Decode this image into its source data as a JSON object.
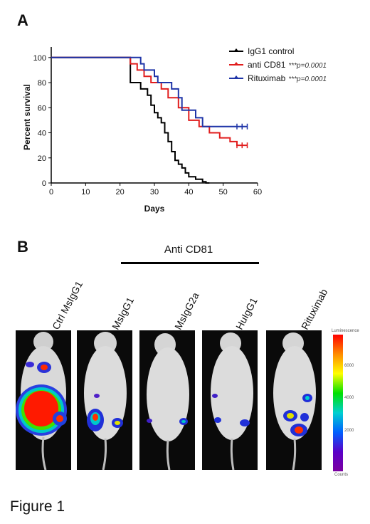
{
  "panel_a_label": "A",
  "panel_b_label": "B",
  "figure_caption": "Figure 1",
  "chart_data": {
    "type": "line",
    "step": true,
    "xlabel": "Days",
    "ylabel": "Percent survival",
    "xlim": [
      0,
      60
    ],
    "ylim": [
      0,
      105
    ],
    "xticks": [
      0,
      10,
      20,
      30,
      40,
      50,
      60
    ],
    "yticks": [
      0,
      20,
      40,
      60,
      80,
      100
    ],
    "legend_position": "top-right",
    "series": [
      {
        "name": "IgG1 control",
        "stat": "",
        "color": "#000000",
        "points": [
          [
            0,
            100
          ],
          [
            23,
            100
          ],
          [
            23,
            80
          ],
          [
            26,
            80
          ],
          [
            26,
            75
          ],
          [
            28,
            75
          ],
          [
            28,
            70
          ],
          [
            29,
            70
          ],
          [
            29,
            62
          ],
          [
            30,
            62
          ],
          [
            30,
            56
          ],
          [
            31,
            56
          ],
          [
            31,
            52
          ],
          [
            32,
            52
          ],
          [
            32,
            48
          ],
          [
            33,
            48
          ],
          [
            33,
            40
          ],
          [
            34,
            40
          ],
          [
            34,
            33
          ],
          [
            35,
            33
          ],
          [
            35,
            25
          ],
          [
            36,
            25
          ],
          [
            36,
            18
          ],
          [
            37,
            18
          ],
          [
            37,
            15
          ],
          [
            38,
            15
          ],
          [
            38,
            12
          ],
          [
            39,
            12
          ],
          [
            39,
            8
          ],
          [
            40,
            8
          ],
          [
            40,
            5
          ],
          [
            42,
            5
          ],
          [
            42,
            3
          ],
          [
            44,
            3
          ],
          [
            44,
            1
          ],
          [
            45,
            1
          ],
          [
            45,
            0
          ],
          [
            46,
            0
          ]
        ],
        "censored": []
      },
      {
        "name": "anti CD81",
        "stat": "***p=0.0001",
        "color": "#e11d1d",
        "points": [
          [
            0,
            100
          ],
          [
            23,
            100
          ],
          [
            23,
            95
          ],
          [
            25,
            95
          ],
          [
            25,
            90
          ],
          [
            27,
            90
          ],
          [
            27,
            85
          ],
          [
            29,
            85
          ],
          [
            29,
            80
          ],
          [
            32,
            80
          ],
          [
            32,
            75
          ],
          [
            34,
            75
          ],
          [
            34,
            68
          ],
          [
            37,
            68
          ],
          [
            37,
            60
          ],
          [
            40,
            60
          ],
          [
            40,
            50
          ],
          [
            43,
            50
          ],
          [
            43,
            45
          ],
          [
            46,
            45
          ],
          [
            46,
            40
          ],
          [
            49,
            40
          ],
          [
            49,
            36
          ],
          [
            52,
            36
          ],
          [
            52,
            33
          ],
          [
            54,
            33
          ],
          [
            54,
            30
          ],
          [
            57,
            30
          ]
        ],
        "censored": [
          [
            54,
            30
          ],
          [
            55.5,
            30
          ],
          [
            57,
            30
          ]
        ]
      },
      {
        "name": "Rituximab",
        "stat": "***p=0.0001",
        "color": "#1f35a8",
        "points": [
          [
            0,
            100
          ],
          [
            26,
            100
          ],
          [
            26,
            95
          ],
          [
            27,
            95
          ],
          [
            27,
            90
          ],
          [
            30,
            90
          ],
          [
            30,
            85
          ],
          [
            31,
            85
          ],
          [
            31,
            80
          ],
          [
            35,
            80
          ],
          [
            35,
            75
          ],
          [
            37,
            75
          ],
          [
            37,
            68
          ],
          [
            38,
            68
          ],
          [
            38,
            58
          ],
          [
            42,
            58
          ],
          [
            42,
            52
          ],
          [
            44,
            52
          ],
          [
            44,
            45
          ],
          [
            57,
            45
          ]
        ],
        "censored": [
          [
            54,
            45
          ],
          [
            55.5,
            45
          ],
          [
            57,
            45
          ]
        ]
      }
    ]
  },
  "panel_b": {
    "group_title": "Anti CD81",
    "columns": [
      {
        "label": "Ctrl MsIgG1"
      },
      {
        "label": "MsIgG1"
      },
      {
        "label": "MsIgG2a"
      },
      {
        "label": "HuIgG1"
      },
      {
        "label": "Rituximab"
      }
    ],
    "colorbar": {
      "top_label": "Luminescence",
      "bottom_label": "Counts",
      "ticks": [
        "6000",
        "4000",
        "2000"
      ]
    }
  }
}
